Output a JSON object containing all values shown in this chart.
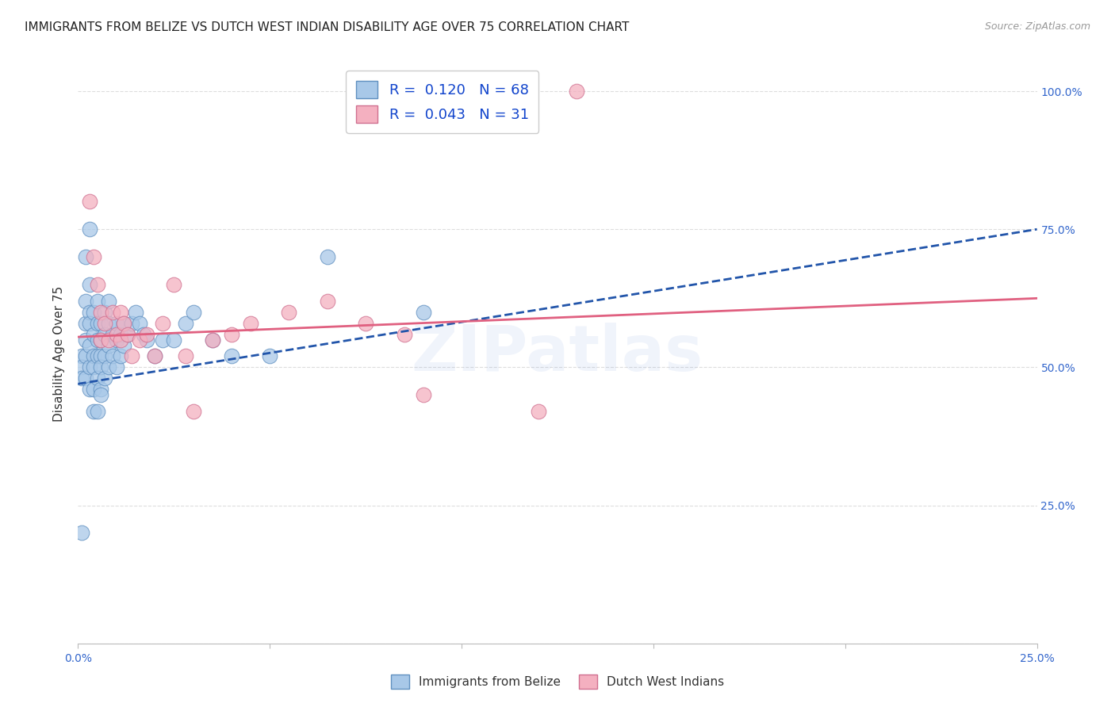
{
  "title": "IMMIGRANTS FROM BELIZE VS DUTCH WEST INDIAN DISABILITY AGE OVER 75 CORRELATION CHART",
  "source": "Source: ZipAtlas.com",
  "ylabel": "Disability Age Over 75",
  "belize_R": 0.12,
  "belize_N": 68,
  "dutch_R": 0.043,
  "dutch_N": 31,
  "belize_color": "#a8c8e8",
  "dutch_color": "#f4b0c0",
  "belize_line_color": "#2255aa",
  "dutch_line_color": "#e06080",
  "belize_edge_color": "#6090c0",
  "dutch_edge_color": "#d07090",
  "xlim": [
    0.0,
    0.25
  ],
  "ylim": [
    0.0,
    1.05
  ],
  "x_ticks": [
    0.0,
    0.05,
    0.1,
    0.15,
    0.2,
    0.25
  ],
  "y_ticks": [
    0.0,
    0.25,
    0.5,
    0.75,
    1.0
  ],
  "belize_line_x0": 0.0,
  "belize_line_y0": 0.47,
  "belize_line_x1": 0.25,
  "belize_line_y1": 0.75,
  "dutch_line_x0": 0.0,
  "dutch_line_y0": 0.555,
  "dutch_line_x1": 0.25,
  "dutch_line_y1": 0.625,
  "watermark": "ZIPatlas",
  "background_color": "#ffffff",
  "grid_color": "#dddddd",
  "title_fontsize": 11,
  "axis_label_fontsize": 11,
  "tick_fontsize": 10,
  "legend_fontsize": 13,
  "belize_x": [
    0.001,
    0.001,
    0.001,
    0.002,
    0.002,
    0.002,
    0.002,
    0.002,
    0.003,
    0.003,
    0.003,
    0.003,
    0.003,
    0.003,
    0.004,
    0.004,
    0.004,
    0.004,
    0.004,
    0.005,
    0.005,
    0.005,
    0.005,
    0.005,
    0.006,
    0.006,
    0.006,
    0.006,
    0.006,
    0.007,
    0.007,
    0.007,
    0.007,
    0.008,
    0.008,
    0.008,
    0.008,
    0.009,
    0.009,
    0.01,
    0.01,
    0.01,
    0.011,
    0.011,
    0.012,
    0.012,
    0.013,
    0.014,
    0.015,
    0.016,
    0.017,
    0.018,
    0.02,
    0.022,
    0.025,
    0.028,
    0.03,
    0.035,
    0.04,
    0.05,
    0.065,
    0.09,
    0.001,
    0.002,
    0.003,
    0.004,
    0.005,
    0.006
  ],
  "belize_y": [
    0.52,
    0.5,
    0.48,
    0.62,
    0.58,
    0.55,
    0.52,
    0.48,
    0.65,
    0.6,
    0.58,
    0.54,
    0.5,
    0.46,
    0.6,
    0.56,
    0.52,
    0.5,
    0.46,
    0.62,
    0.58,
    0.55,
    0.52,
    0.48,
    0.58,
    0.55,
    0.52,
    0.5,
    0.46,
    0.6,
    0.56,
    0.52,
    0.48,
    0.62,
    0.58,
    0.54,
    0.5,
    0.56,
    0.52,
    0.58,
    0.55,
    0.5,
    0.56,
    0.52,
    0.58,
    0.54,
    0.56,
    0.58,
    0.6,
    0.58,
    0.56,
    0.55,
    0.52,
    0.55,
    0.55,
    0.58,
    0.6,
    0.55,
    0.52,
    0.52,
    0.7,
    0.6,
    0.2,
    0.7,
    0.75,
    0.42,
    0.42,
    0.45
  ],
  "dutch_x": [
    0.003,
    0.004,
    0.005,
    0.006,
    0.006,
    0.007,
    0.008,
    0.009,
    0.01,
    0.011,
    0.011,
    0.012,
    0.013,
    0.014,
    0.016,
    0.018,
    0.02,
    0.022,
    0.025,
    0.028,
    0.03,
    0.035,
    0.04,
    0.045,
    0.055,
    0.065,
    0.075,
    0.085,
    0.09,
    0.12,
    0.13
  ],
  "dutch_y": [
    0.8,
    0.7,
    0.65,
    0.6,
    0.55,
    0.58,
    0.55,
    0.6,
    0.56,
    0.6,
    0.55,
    0.58,
    0.56,
    0.52,
    0.55,
    0.56,
    0.52,
    0.58,
    0.65,
    0.52,
    0.42,
    0.55,
    0.56,
    0.58,
    0.6,
    0.62,
    0.58,
    0.56,
    0.45,
    0.42,
    1.0
  ]
}
